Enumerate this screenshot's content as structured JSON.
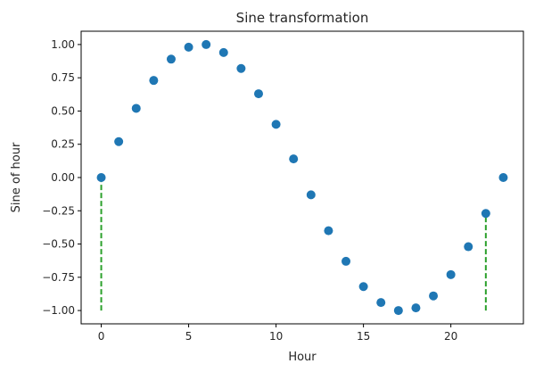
{
  "chart_data": {
    "type": "scatter",
    "title": "Sine transformation",
    "xlabel": "Hour",
    "ylabel": "Sine of hour",
    "xlim": [
      -1.15,
      24.15
    ],
    "ylim": [
      -1.1,
      1.1
    ],
    "xticks": [
      0,
      5,
      10,
      15,
      20
    ],
    "xtick_labels": [
      "0",
      "5",
      "10",
      "15",
      "20"
    ],
    "yticks": [
      1.0,
      0.75,
      0.5,
      0.25,
      0.0,
      -0.25,
      -0.5,
      -0.75,
      -1.0
    ],
    "ytick_labels": [
      "1.00",
      "0.75",
      "0.50",
      "0.25",
      "0.00",
      "−0.25",
      "−0.50",
      "−0.75",
      "−1.00"
    ],
    "grid": false,
    "series": [
      {
        "color": "#1f77b4",
        "x": [
          0,
          1,
          2,
          3,
          4,
          5,
          6,
          7,
          8,
          9,
          10,
          11,
          12,
          13,
          14,
          15,
          16,
          17,
          18,
          19,
          20,
          21,
          22,
          23
        ],
        "y": [
          0.0,
          0.27,
          0.52,
          0.73,
          0.89,
          0.98,
          1.0,
          0.94,
          0.82,
          0.63,
          0.4,
          0.14,
          -0.13,
          -0.4,
          -0.63,
          -0.82,
          -0.94,
          -1.0,
          -0.98,
          -0.89,
          -0.73,
          -0.52,
          -0.27,
          0.0
        ]
      }
    ],
    "vlines": [
      {
        "x": 0,
        "y_from": -1.0,
        "y_to": 0.0,
        "color": "#2ca02c",
        "style": "dashed"
      },
      {
        "x": 22,
        "y_from": -1.0,
        "y_to": -0.27,
        "color": "#2ca02c",
        "style": "dashed"
      }
    ]
  }
}
